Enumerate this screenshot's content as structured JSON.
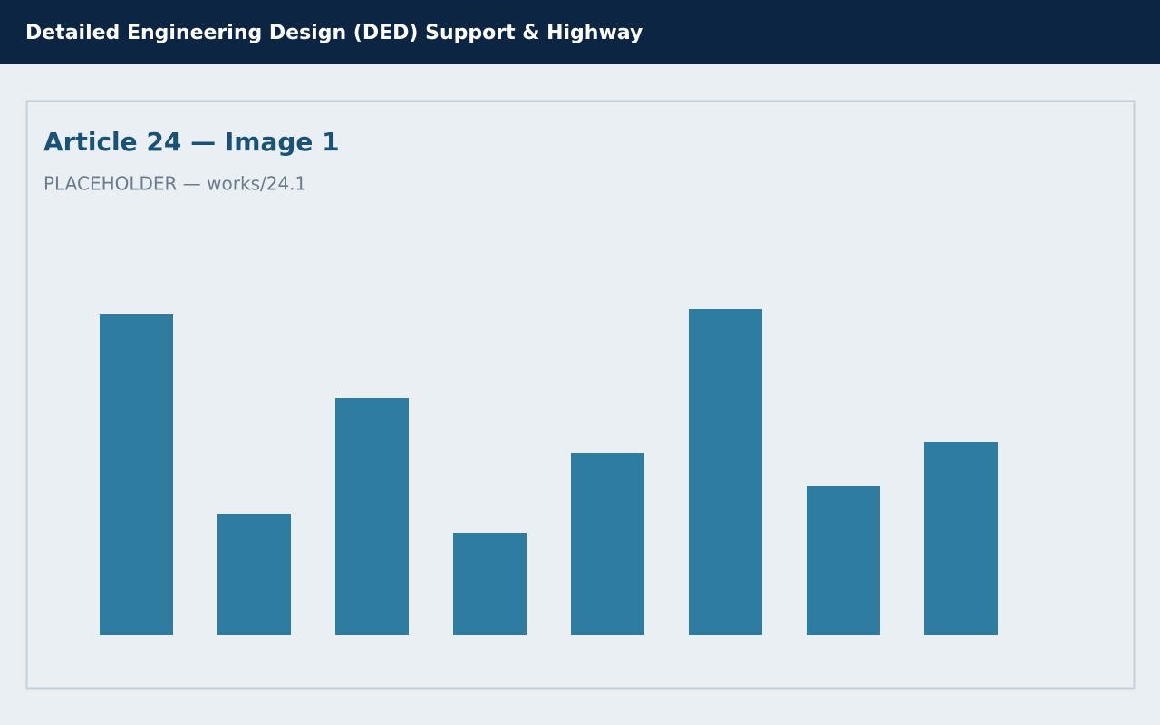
{
  "header": {
    "title": "Detailed Engineering Design (DED) Support & Highway"
  },
  "panel": {
    "title": "Article 24 — Image 1",
    "subtitle": "PLACEHOLDER — works/24.1"
  },
  "chart_data": {
    "type": "bar",
    "values": [
      354,
      134,
      262,
      113,
      201,
      360,
      165,
      213
    ],
    "color": "#2e7da0",
    "ylim": [
      0,
      400
    ]
  }
}
